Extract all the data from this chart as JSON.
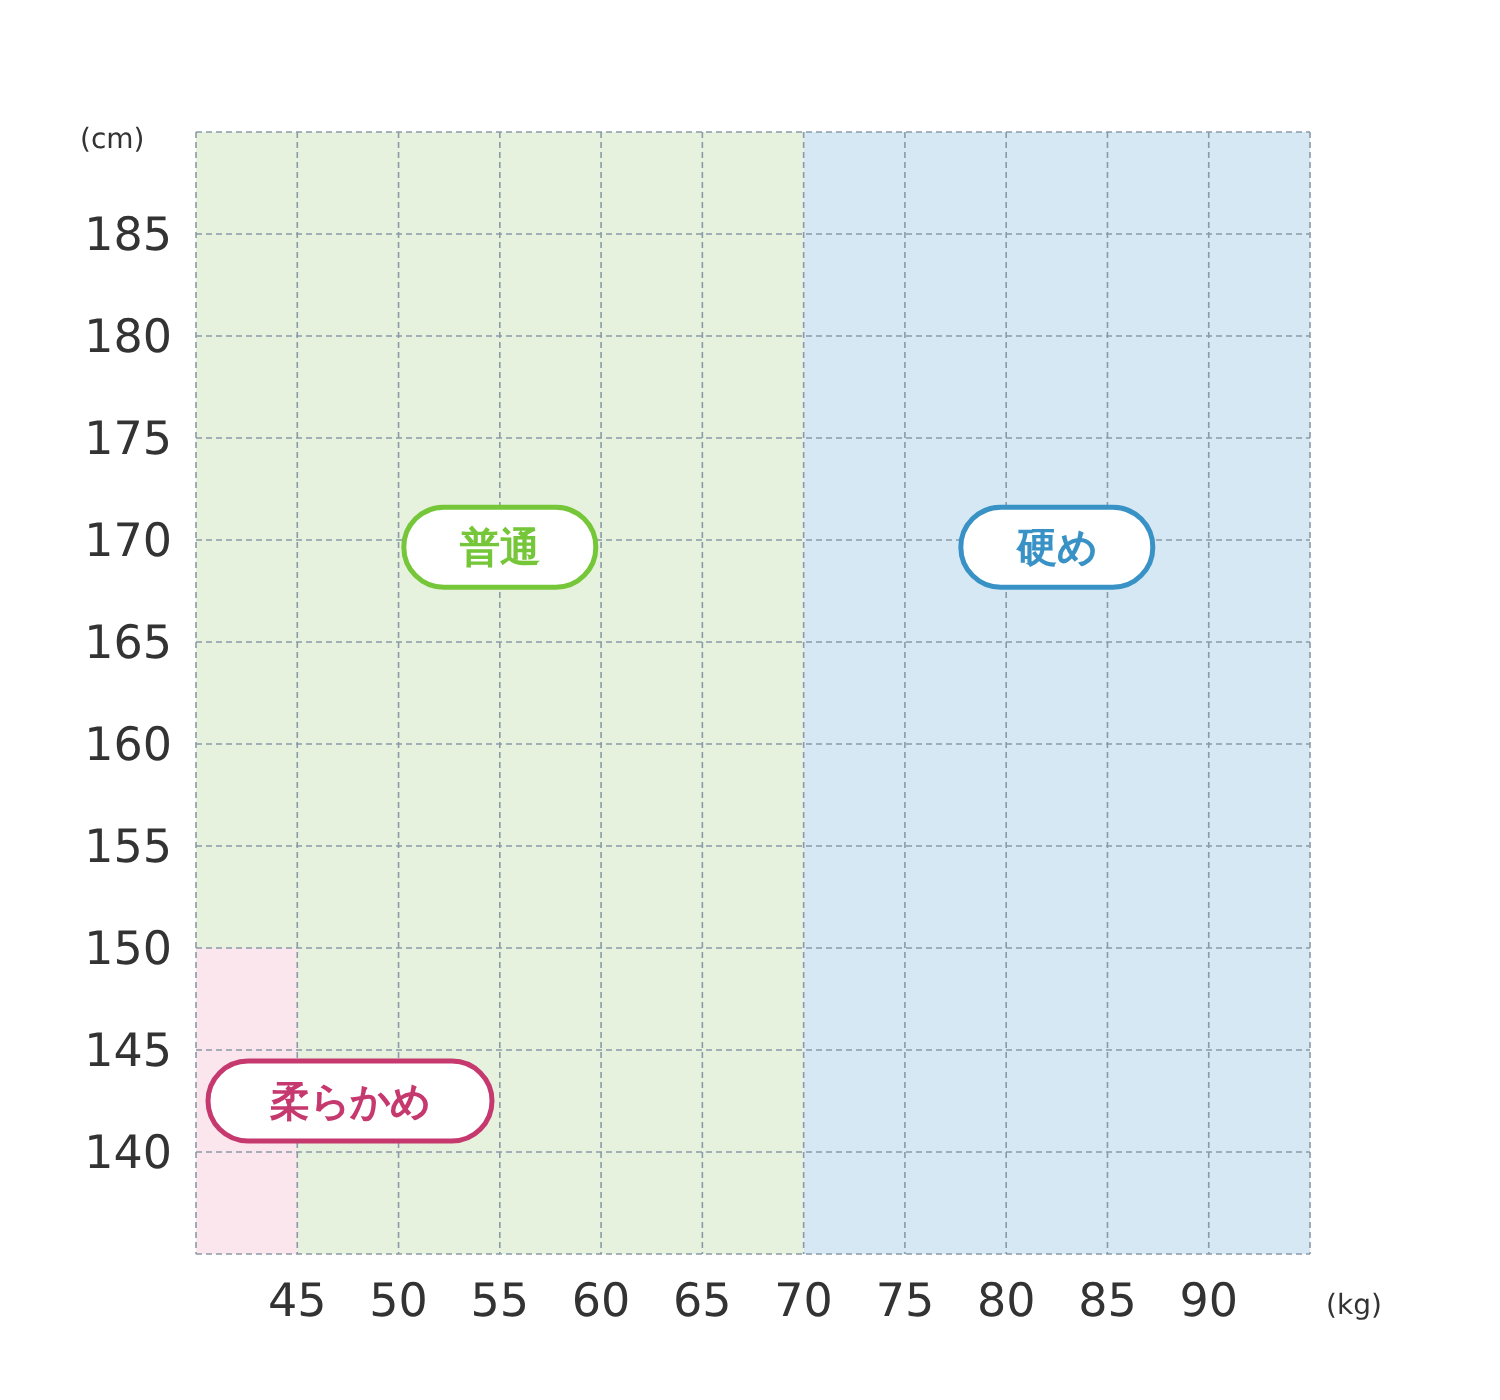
{
  "chart_data": {
    "type": "area",
    "xlabel": "(kg)",
    "ylabel": "(cm)",
    "xlim": [
      40,
      95
    ],
    "ylim": [
      135,
      190
    ],
    "xticks": [
      {
        "value": 40,
        "label": null
      },
      45,
      50,
      55,
      60,
      65,
      70,
      75,
      80,
      85,
      90,
      {
        "value": 95,
        "label": null
      }
    ],
    "yticks": [
      {
        "value": 135,
        "label": null
      },
      140,
      145,
      150,
      155,
      160,
      165,
      170,
      175,
      180,
      185,
      {
        "value": 190,
        "label": null
      }
    ],
    "grid": true,
    "series": [
      {
        "name": "普通",
        "color": "#e6f2dd",
        "x": [
          40,
          70
        ],
        "values": [
          190,
          190
        ]
      },
      {
        "name": "硬め",
        "color": "#d5e8f3",
        "x": [
          70,
          95
        ],
        "values": [
          190,
          190
        ]
      },
      {
        "name": "柔らかめ",
        "color": "#fbe6ee",
        "x": [
          40,
          45
        ],
        "values": [
          150,
          150
        ]
      }
    ]
  }
}
